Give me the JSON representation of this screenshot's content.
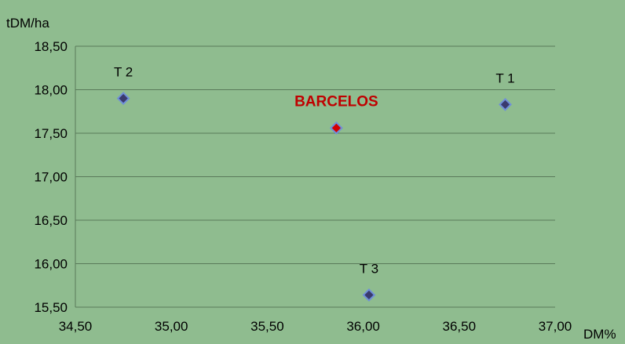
{
  "chart_data": {
    "type": "scatter",
    "title": "",
    "xlabel": "DM%",
    "ylabel": "tDM/ha",
    "xlim": [
      34.5,
      37.0
    ],
    "ylim": [
      15.5,
      18.5
    ],
    "x_ticks": [
      "34,50",
      "35,00",
      "35,50",
      "36,00",
      "36,50",
      "37,00"
    ],
    "y_ticks": [
      "15,50",
      "16,00",
      "16,50",
      "17,00",
      "17,50",
      "18,00",
      "18,50"
    ],
    "grid": "horizontal",
    "legend": "none",
    "points": [
      {
        "label": "T 2",
        "x": 34.75,
        "y": 17.9,
        "color": "#3a3a6e",
        "highlight": false
      },
      {
        "label": "BARCELOS",
        "x": 35.86,
        "y": 17.56,
        "color": "#d40000",
        "highlight": true
      },
      {
        "label": "T 1",
        "x": 36.74,
        "y": 17.83,
        "color": "#3a3a6e",
        "highlight": false
      },
      {
        "label": "T 3",
        "x": 36.03,
        "y": 15.64,
        "color": "#3a3a6e",
        "highlight": false
      }
    ],
    "marker_outline_color": "#6f8fd8",
    "grid_color": "#5a7a5a",
    "background_color": "#8fbc8f"
  }
}
